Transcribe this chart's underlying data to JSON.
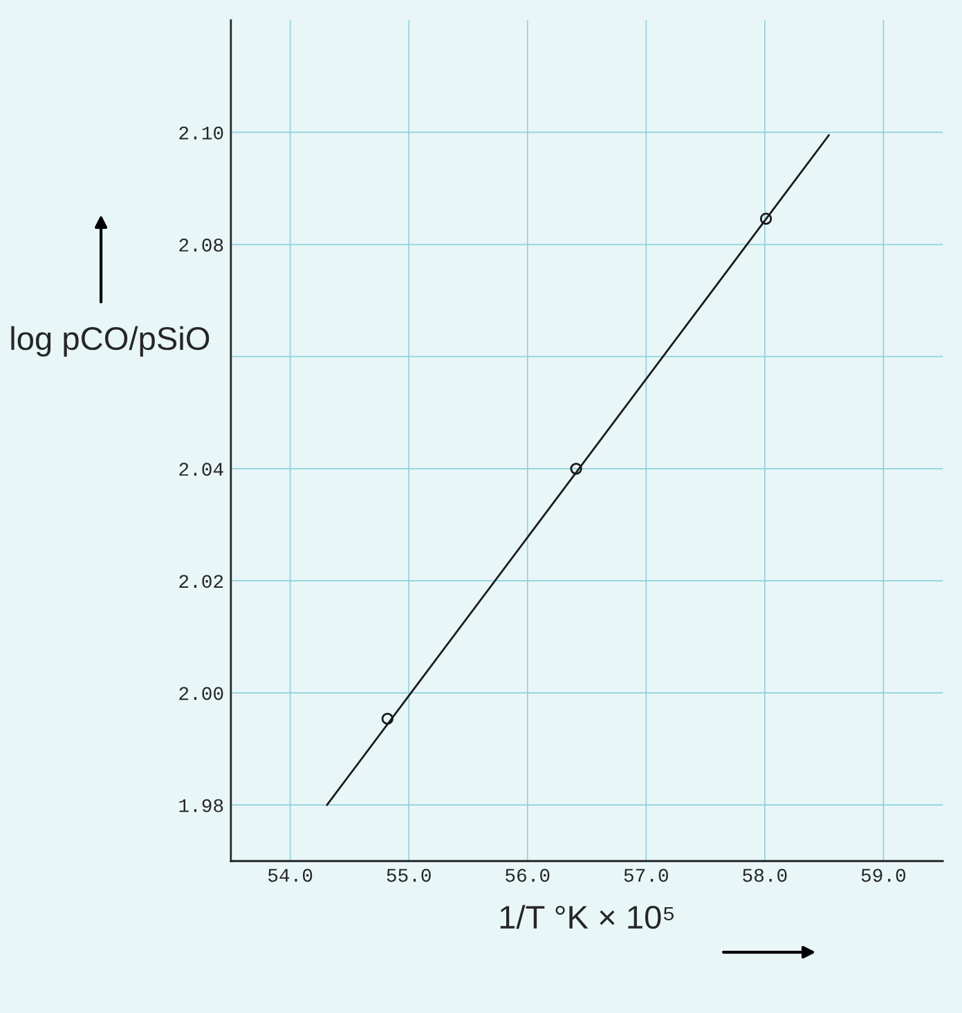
{
  "chart_data": {
    "type": "scatter",
    "xlabel": "1/T °K × 10⁵",
    "ylabel": "log pCO/pSiO",
    "series": [
      {
        "color": "#1a1a1a",
        "x": [
          54.82,
          56.41,
          58.01
        ],
        "values": [
          1.9954,
          2.04,
          2.0846
        ],
        "marker": "circle"
      },
      {
        "type": "line",
        "color": "#1a1a1a",
        "x": [
          54.31,
          58.54
        ],
        "values": [
          1.98,
          2.0995
        ],
        "marker": "none",
        "line_style": "solid"
      }
    ],
    "xlim": [
      53.5,
      59.5
    ],
    "ylim": [
      1.97,
      2.12
    ],
    "xticks": [
      {
        "value": 54,
        "label": "54.0"
      },
      {
        "value": 55,
        "label": "55.0"
      },
      {
        "value": 56,
        "label": "56.0"
      },
      {
        "value": 57,
        "label": "57.0"
      },
      {
        "value": 58,
        "label": "58.0"
      },
      {
        "value": 59,
        "label": "59.0"
      }
    ],
    "yticks": [
      {
        "value": 1.98,
        "label": "1.98"
      },
      {
        "value": 2.0,
        "label": "2.00"
      },
      {
        "value": 2.02,
        "label": "2.02"
      },
      {
        "value": 2.04,
        "label": "2.04"
      },
      {
        "value": 2.06,
        "label": null
      },
      {
        "value": 2.08,
        "label": "2.08"
      },
      {
        "value": 2.1,
        "label": "2.10"
      }
    ],
    "grid": true,
    "legend": false
  }
}
